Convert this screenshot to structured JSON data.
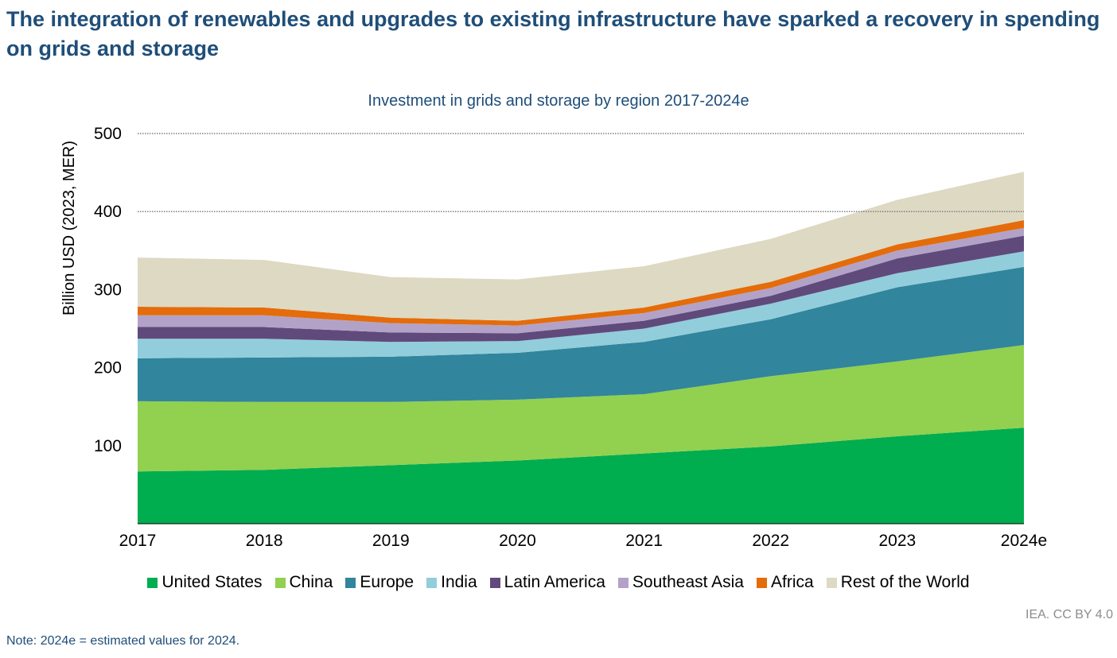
{
  "headline": "The integration of renewables and upgrades to existing infrastructure have sparked a recovery in spending on grids and storage",
  "credit": "IEA. CC BY 4.0",
  "note": "Note: 2024e = estimated values for 2024.",
  "chart_data": {
    "type": "area",
    "stacked": true,
    "title": "Investment in grids and storage by region 2017-2024e",
    "xlabel": "",
    "ylabel": "Billion USD (2023, MER)",
    "categories": [
      "2017",
      "2018",
      "2019",
      "2020",
      "2021",
      "2022",
      "2023",
      "2024e"
    ],
    "ylim": [
      0,
      500
    ],
    "yticks": [
      100,
      200,
      300,
      400,
      500
    ],
    "gridlines": [
      400,
      500
    ],
    "legend_position": "bottom",
    "series": [
      {
        "name": "United States",
        "color": "#00ad4f",
        "values": [
          67,
          69,
          75,
          81,
          90,
          99,
          112,
          123
        ]
      },
      {
        "name": "China",
        "color": "#92d050",
        "values": [
          90,
          87,
          81,
          78,
          76,
          90,
          96,
          106
        ]
      },
      {
        "name": "Europe",
        "color": "#31859c",
        "values": [
          55,
          57,
          58,
          60,
          67,
          73,
          95,
          100
        ]
      },
      {
        "name": "India",
        "color": "#92cddc",
        "values": [
          25,
          24,
          19,
          15,
          17,
          20,
          18,
          20
        ]
      },
      {
        "name": "Latin America",
        "color": "#604a7b",
        "values": [
          15,
          15,
          12,
          10,
          10,
          10,
          19,
          20
        ]
      },
      {
        "name": "Southeast Asia",
        "color": "#b3a2c7",
        "values": [
          15,
          15,
          12,
          10,
          10,
          10,
          10,
          10
        ]
      },
      {
        "name": "Africa",
        "color": "#e46c0a",
        "values": [
          11,
          10,
          7,
          6,
          7,
          8,
          8,
          10
        ]
      },
      {
        "name": "Rest of the World",
        "color": "#ddd9c3",
        "values": [
          63,
          61,
          52,
          53,
          53,
          55,
          57,
          62
        ]
      }
    ]
  }
}
